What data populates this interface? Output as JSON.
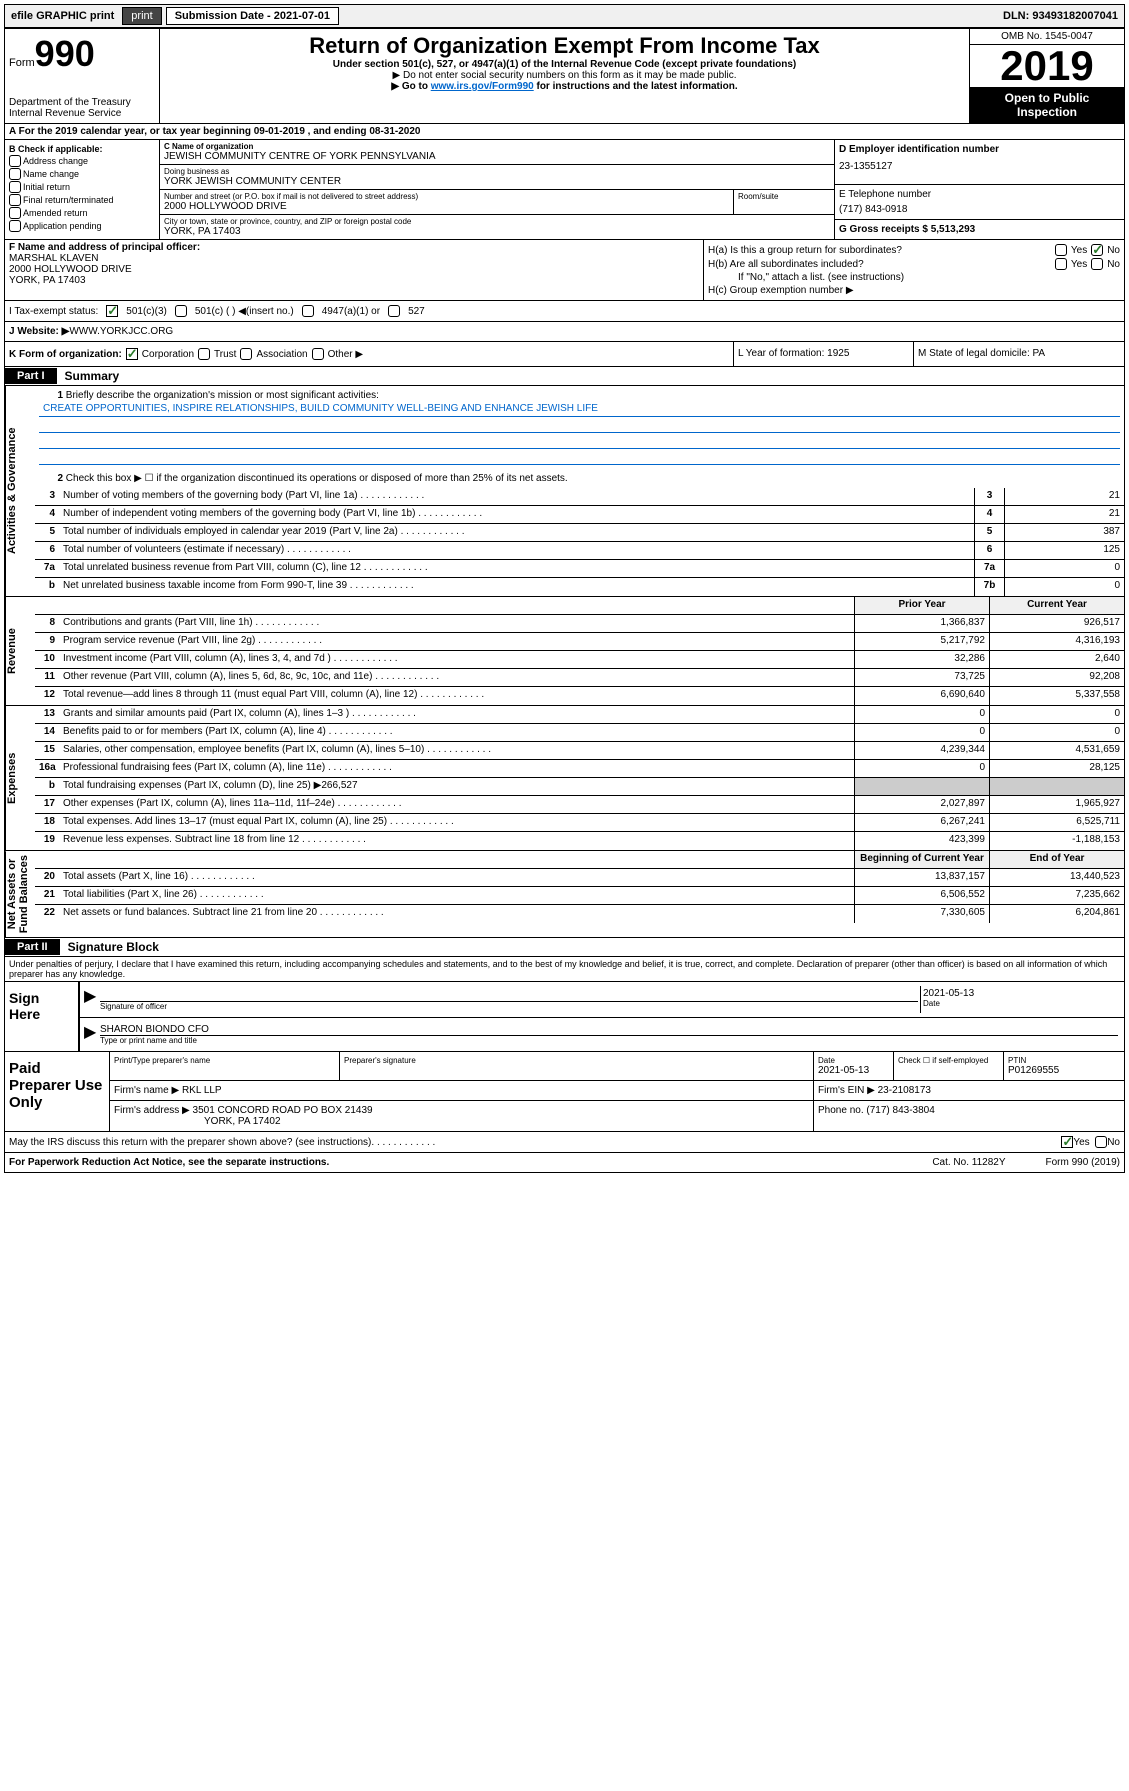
{
  "topbar": {
    "efile": "efile GRAPHIC print",
    "submission": "Submission Date - 2021-07-01",
    "dln": "DLN: 93493182007041"
  },
  "header": {
    "form_prefix": "Form",
    "form_num": "990",
    "title": "Return of Organization Exempt From Income Tax",
    "subtitle": "Under section 501(c), 527, or 4947(a)(1) of the Internal Revenue Code (except private foundations)",
    "note1": "▶ Do not enter social security numbers on this form as it may be made public.",
    "note2_pre": "▶ Go to ",
    "note2_link": "www.irs.gov/Form990",
    "note2_post": " for instructions and the latest information.",
    "dept": "Department of the Treasury",
    "irs": "Internal Revenue Service",
    "omb": "OMB No. 1545-0047",
    "year": "2019",
    "open": "Open to Public Inspection"
  },
  "row_a": "A   For the 2019 calendar year, or tax year beginning 09-01-2019    , and ending 08-31-2020",
  "box_b": {
    "label": "B Check if applicable:",
    "items": [
      "Address change",
      "Name change",
      "Initial return",
      "Final return/terminated",
      "Amended return",
      "Application pending"
    ]
  },
  "box_c": {
    "name_label": "C Name of organization",
    "name": "JEWISH COMMUNITY CENTRE OF YORK PENNSYLVANIA",
    "dba_label": "Doing business as",
    "dba": "YORK JEWISH COMMUNITY CENTER",
    "addr_label": "Number and street (or P.O. box if mail is not delivered to street address)",
    "addr": "2000 HOLLYWOOD DRIVE",
    "room_label": "Room/suite",
    "city_label": "City or town, state or province, country, and ZIP or foreign postal code",
    "city": "YORK, PA  17403"
  },
  "box_d": {
    "label": "D Employer identification number",
    "val": "23-1355127"
  },
  "box_e": {
    "label": "E Telephone number",
    "val": "(717) 843-0918"
  },
  "box_g": {
    "label": "G Gross receipts $ 5,513,293"
  },
  "box_f": {
    "label": "F  Name and address of principal officer:",
    "name": "MARSHAL KLAVEN",
    "addr1": "2000 HOLLYWOOD DRIVE",
    "addr2": "YORK, PA  17403"
  },
  "box_h": {
    "ha": "H(a)  Is this a group return for subordinates?",
    "hb": "H(b)  Are all subordinates included?",
    "hb_note": "If \"No,\" attach a list. (see instructions)",
    "hc": "H(c)  Group exemption number ▶"
  },
  "row_i": {
    "label": "I     Tax-exempt status:",
    "opts": [
      "501(c)(3)",
      "501(c) (  ) ◀(insert no.)",
      "4947(a)(1) or",
      "527"
    ]
  },
  "row_j": {
    "label": "J     Website: ▶",
    "val": "  WWW.YORKJCC.ORG"
  },
  "row_k": {
    "label": "K Form of organization:",
    "opts": [
      "Corporation",
      "Trust",
      "Association",
      "Other ▶"
    ]
  },
  "row_l": "L Year of formation: 1925",
  "row_m": "M State of legal domicile: PA",
  "parts": {
    "p1": "Part I",
    "p1_title": "Summary",
    "p2": "Part II",
    "p2_title": "Signature Block"
  },
  "vtabs": {
    "ag": "Activities & Governance",
    "rev": "Revenue",
    "exp": "Expenses",
    "nfb": "Net Assets or Fund Balances"
  },
  "summary": {
    "q1": "Briefly describe the organization's mission or most significant activities:",
    "mission": "CREATE OPPORTUNITIES, INSPIRE RELATIONSHIPS, BUILD COMMUNITY WELL-BEING AND ENHANCE JEWISH LIFE",
    "q2": "Check this box ▶ ☐  if the organization discontinued its operations or disposed of more than 25% of its net assets.",
    "lines": [
      {
        "n": "3",
        "t": "Number of voting members of the governing body (Part VI, line 1a)",
        "box": "3",
        "v": "21"
      },
      {
        "n": "4",
        "t": "Number of independent voting members of the governing body (Part VI, line 1b)",
        "box": "4",
        "v": "21"
      },
      {
        "n": "5",
        "t": "Total number of individuals employed in calendar year 2019 (Part V, line 2a)",
        "box": "5",
        "v": "387"
      },
      {
        "n": "6",
        "t": "Total number of volunteers (estimate if necessary)",
        "box": "6",
        "v": "125"
      },
      {
        "n": "7a",
        "t": "Total unrelated business revenue from Part VIII, column (C), line 12",
        "box": "7a",
        "v": "0"
      },
      {
        "n": "b",
        "t": "Net unrelated business taxable income from Form 990-T, line 39",
        "box": "7b",
        "v": "0"
      }
    ],
    "h_prior": "Prior Year",
    "h_current": "Current Year",
    "rev": [
      {
        "n": "8",
        "t": "Contributions and grants (Part VIII, line 1h)",
        "p": "1,366,837",
        "c": "926,517"
      },
      {
        "n": "9",
        "t": "Program service revenue (Part VIII, line 2g)",
        "p": "5,217,792",
        "c": "4,316,193"
      },
      {
        "n": "10",
        "t": "Investment income (Part VIII, column (A), lines 3, 4, and 7d )",
        "p": "32,286",
        "c": "2,640"
      },
      {
        "n": "11",
        "t": "Other revenue (Part VIII, column (A), lines 5, 6d, 8c, 9c, 10c, and 11e)",
        "p": "73,725",
        "c": "92,208"
      },
      {
        "n": "12",
        "t": "Total revenue—add lines 8 through 11 (must equal Part VIII, column (A), line 12)",
        "p": "6,690,640",
        "c": "5,337,558"
      }
    ],
    "exp": [
      {
        "n": "13",
        "t": "Grants and similar amounts paid (Part IX, column (A), lines 1–3 )",
        "p": "0",
        "c": "0"
      },
      {
        "n": "14",
        "t": "Benefits paid to or for members (Part IX, column (A), line 4)",
        "p": "0",
        "c": "0"
      },
      {
        "n": "15",
        "t": "Salaries, other compensation, employee benefits (Part IX, column (A), lines 5–10)",
        "p": "4,239,344",
        "c": "4,531,659"
      },
      {
        "n": "16a",
        "t": "Professional fundraising fees (Part IX, column (A), line 11e)",
        "p": "0",
        "c": "28,125"
      },
      {
        "n": "b",
        "t": "Total fundraising expenses (Part IX, column (D), line 25) ▶266,527",
        "p": "",
        "c": ""
      },
      {
        "n": "17",
        "t": "Other expenses (Part IX, column (A), lines 11a–11d, 11f–24e)",
        "p": "2,027,897",
        "c": "1,965,927"
      },
      {
        "n": "18",
        "t": "Total expenses. Add lines 13–17 (must equal Part IX, column (A), line 25)",
        "p": "6,267,241",
        "c": "6,525,711"
      },
      {
        "n": "19",
        "t": "Revenue less expenses. Subtract line 18 from line 12",
        "p": "423,399",
        "c": "-1,188,153"
      }
    ],
    "h_beg": "Beginning of Current Year",
    "h_end": "End of Year",
    "net": [
      {
        "n": "20",
        "t": "Total assets (Part X, line 16)",
        "p": "13,837,157",
        "c": "13,440,523"
      },
      {
        "n": "21",
        "t": "Total liabilities (Part X, line 26)",
        "p": "6,506,552",
        "c": "7,235,662"
      },
      {
        "n": "22",
        "t": "Net assets or fund balances. Subtract line 21 from line 20",
        "p": "7,330,605",
        "c": "6,204,861"
      }
    ]
  },
  "sig": {
    "perjury": "Under penalties of perjury, I declare that I have examined this return, including accompanying schedules and statements, and to the best of my knowledge and belief, it is true, correct, and complete. Declaration of preparer (other than officer) is based on all information of which preparer has any knowledge.",
    "sign_here": "Sign Here",
    "sig_officer": "Signature of officer",
    "date_val": "2021-05-13",
    "date": "Date",
    "name_val": "SHARON BIONDO CFO",
    "name_label": "Type or print name and title",
    "paid": "Paid Preparer Use Only",
    "prep_name_label": "Print/Type preparer's name",
    "prep_sig_label": "Preparer's signature",
    "prep_date": "2021-05-13",
    "prep_date_label": "Date",
    "check_label": "Check ☐ if self-employed",
    "ptin_label": "PTIN",
    "ptin": "P01269555",
    "firm_name_label": "Firm's name    ▶",
    "firm_name": "RKL LLP",
    "firm_ein_label": "Firm's EIN ▶",
    "firm_ein": "23-2108173",
    "firm_addr_label": "Firm's address ▶",
    "firm_addr1": "3501 CONCORD ROAD PO BOX 21439",
    "firm_addr2": "YORK, PA  17402",
    "phone_label": "Phone no.",
    "phone": "(717) 843-3804",
    "discuss": "May the IRS discuss this return with the preparer shown above? (see instructions)",
    "paperwork": "For Paperwork Reduction Act Notice, see the separate instructions.",
    "cat": "Cat. No. 11282Y",
    "form_foot": "Form 990 (2019)"
  }
}
